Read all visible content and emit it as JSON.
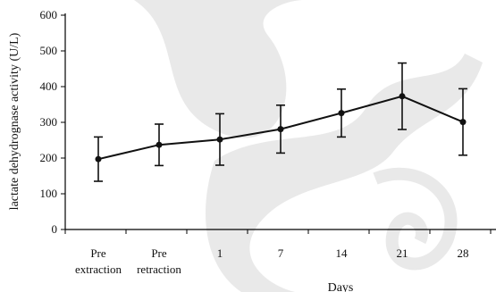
{
  "chart_data": {
    "type": "line",
    "ylabel": "lactate dehydrognase activity (U/L)",
    "xlabel": "Days",
    "ylim": [
      0,
      600
    ],
    "yticks": [
      0,
      100,
      200,
      300,
      400,
      500,
      600
    ],
    "categories": [
      [
        "Pre",
        "extraction"
      ],
      [
        "Pre",
        "retraction"
      ],
      [
        "1"
      ],
      [
        "7"
      ],
      [
        "14"
      ],
      [
        "21"
      ],
      [
        "28"
      ]
    ],
    "series": [
      {
        "values": [
          197,
          237,
          252,
          281,
          326,
          373,
          301
        ],
        "error": [
          62,
          58,
          72,
          67,
          67,
          93,
          93
        ],
        "color": "#111111"
      }
    ],
    "grid": false
  }
}
